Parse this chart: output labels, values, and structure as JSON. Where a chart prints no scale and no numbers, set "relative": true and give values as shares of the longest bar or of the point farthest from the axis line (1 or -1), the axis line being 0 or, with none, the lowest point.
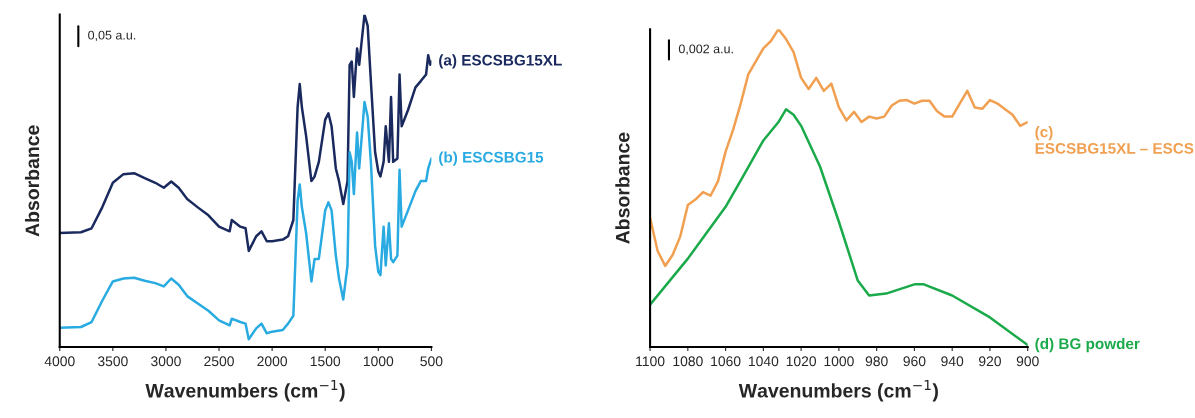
{
  "chart_data": [
    {
      "type": "line",
      "relative": true,
      "xlabel": "Wavenumbers (cm$^{−1}$)",
      "ylabel": "Absorbance",
      "xlim": [
        4000,
        500
      ],
      "xticks": [
        4000,
        3500,
        3000,
        2500,
        2000,
        1500,
        1000,
        500
      ],
      "annotations": [
        "0,05 a.u."
      ],
      "series": [
        {
          "name": "(a) ESCSBG15XL",
          "color": "#1a2a5e",
          "x": [
            4000,
            3800,
            3700,
            3600,
            3500,
            3400,
            3300,
            3200,
            3100,
            3020,
            2950,
            2880,
            2800,
            2700,
            2600,
            2500,
            2400,
            2380,
            2300,
            2250,
            2220,
            2150,
            2100,
            2050,
            2000,
            1900,
            1850,
            1800,
            1760,
            1740,
            1720,
            1680,
            1630,
            1600,
            1560,
            1500,
            1470,
            1440,
            1400,
            1370,
            1330,
            1290,
            1270,
            1250,
            1230,
            1200,
            1180,
            1130,
            1100,
            1070,
            1030,
            1000,
            980,
            950,
            930,
            900,
            880,
            860,
            820,
            800,
            780,
            720,
            650,
            600,
            550,
            530,
            510,
            500
          ],
          "values": [
            0.343,
            0.345,
            0.357,
            0.42,
            0.494,
            0.52,
            0.523,
            0.508,
            0.494,
            0.479,
            0.498,
            0.479,
            0.445,
            0.42,
            0.396,
            0.362,
            0.348,
            0.382,
            0.362,
            0.357,
            0.289,
            0.333,
            0.348,
            0.318,
            0.318,
            0.323,
            0.333,
            0.382,
            0.722,
            0.791,
            0.722,
            0.635,
            0.499,
            0.513,
            0.557,
            0.684,
            0.703,
            0.664,
            0.537,
            0.499,
            0.43,
            0.499,
            0.849,
            0.859,
            0.752,
            0.898,
            0.849,
            1.0,
            0.966,
            0.8,
            0.586,
            0.528,
            0.513,
            0.557,
            0.664,
            0.557,
            0.752,
            0.557,
            0.567,
            0.82,
            0.664,
            0.713,
            0.781,
            0.8,
            0.82,
            0.878,
            0.849,
            0.859
          ]
        },
        {
          "name": "(b) ESCSBG15",
          "color": "#29abe2",
          "x": [
            4000,
            3800,
            3700,
            3600,
            3500,
            3400,
            3300,
            3200,
            3100,
            3020,
            2950,
            2880,
            2800,
            2700,
            2600,
            2500,
            2400,
            2380,
            2300,
            2250,
            2220,
            2150,
            2100,
            2050,
            2000,
            1900,
            1850,
            1800,
            1760,
            1740,
            1720,
            1680,
            1630,
            1600,
            1560,
            1500,
            1470,
            1440,
            1400,
            1370,
            1330,
            1290,
            1270,
            1250,
            1230,
            1200,
            1180,
            1130,
            1100,
            1070,
            1030,
            1000,
            980,
            950,
            930,
            900,
            880,
            860,
            820,
            800,
            780,
            720,
            650,
            600,
            550,
            530,
            510,
            500
          ],
          "values": [
            0.058,
            0.06,
            0.075,
            0.139,
            0.197,
            0.206,
            0.208,
            0.199,
            0.192,
            0.182,
            0.206,
            0.187,
            0.153,
            0.131,
            0.109,
            0.08,
            0.065,
            0.085,
            0.075,
            0.07,
            0.023,
            0.056,
            0.07,
            0.041,
            0.046,
            0.051,
            0.07,
            0.094,
            0.44,
            0.489,
            0.421,
            0.343,
            0.197,
            0.265,
            0.265,
            0.411,
            0.435,
            0.411,
            0.275,
            0.206,
            0.143,
            0.245,
            0.586,
            0.557,
            0.46,
            0.645,
            0.537,
            0.737,
            0.693,
            0.557,
            0.304,
            0.226,
            0.216,
            0.362,
            0.245,
            0.372,
            0.265,
            0.255,
            0.275,
            0.533,
            0.362,
            0.411,
            0.469,
            0.499,
            0.499,
            0.537,
            0.557,
            0.567
          ]
        }
      ]
    },
    {
      "type": "line",
      "relative": true,
      "xlabel": "Wavenumbers (cm$^{−1}$)",
      "ylabel": "Absorbance",
      "xlim": [
        1100,
        900
      ],
      "xticks": [
        1100,
        1080,
        1060,
        1040,
        1020,
        1000,
        980,
        960,
        940,
        920,
        900
      ],
      "annotations": [
        "0,002 a.u."
      ],
      "series": [
        {
          "name": "(c)\nESCSBG15XL – ESCS",
          "color": "#f0a050",
          "x": [
            1100,
            1096,
            1092,
            1088,
            1084,
            1080,
            1076,
            1072,
            1068,
            1064,
            1060,
            1056,
            1052,
            1048,
            1044,
            1040,
            1036,
            1032,
            1028,
            1024,
            1020,
            1016,
            1012,
            1008,
            1004,
            1000,
            996,
            992,
            988,
            984,
            980,
            976,
            972,
            968,
            964,
            960,
            956,
            952,
            948,
            944,
            940,
            936,
            932,
            928,
            924,
            920,
            916,
            912,
            908,
            904,
            900
          ],
          "values": [
            0.406,
            0.302,
            0.255,
            0.29,
            0.348,
            0.447,
            0.464,
            0.487,
            0.476,
            0.522,
            0.615,
            0.684,
            0.766,
            0.858,
            0.899,
            0.94,
            0.963,
            1.0,
            0.969,
            0.928,
            0.847,
            0.812,
            0.847,
            0.806,
            0.829,
            0.754,
            0.713,
            0.74,
            0.708,
            0.725,
            0.719,
            0.725,
            0.76,
            0.775,
            0.777,
            0.766,
            0.775,
            0.775,
            0.742,
            0.725,
            0.725,
            0.766,
            0.806,
            0.754,
            0.75,
            0.777,
            0.766,
            0.748,
            0.731,
            0.696,
            0.708
          ]
        },
        {
          "name": "(d) BG powder",
          "color": "#1aaa4a",
          "x": [
            1100,
            1080,
            1060,
            1050,
            1040,
            1032,
            1028,
            1024,
            1020,
            1010,
            1000,
            990,
            984,
            975,
            960,
            955,
            940,
            920,
            900
          ],
          "values": [
            0.133,
            0.278,
            0.441,
            0.545,
            0.65,
            0.708,
            0.748,
            0.731,
            0.696,
            0.568,
            0.394,
            0.209,
            0.162,
            0.168,
            0.197,
            0.197,
            0.162,
            0.093,
            0.006
          ]
        }
      ]
    }
  ]
}
